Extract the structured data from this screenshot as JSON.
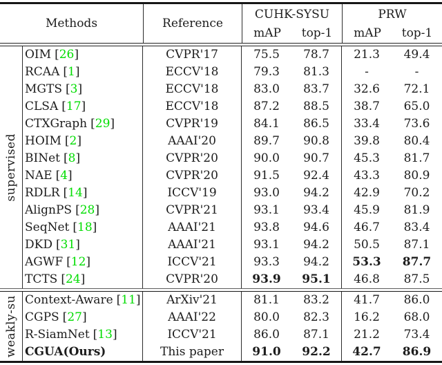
{
  "colors": {
    "citation_green": "#00dd00",
    "text": "#1c1c1c",
    "rule": "#161616"
  },
  "table": {
    "lb": "[",
    "rb": "]",
    "header": {
      "methods": "Methods",
      "reference": "Reference",
      "cuhk": "CUHK-SYSU",
      "prw": "PRW",
      "map": "mAP",
      "top1": "top-1"
    },
    "groups": [
      {
        "label": "supervised",
        "rows": [
          {
            "method": "OIM",
            "cite": "26",
            "ref": "CVPR'17",
            "c_map": "75.5",
            "c_top": "78.7",
            "p_map": "21.3",
            "p_top": "49.4"
          },
          {
            "method": "RCAA",
            "cite": "1",
            "ref": "ECCV'18",
            "c_map": "79.3",
            "c_top": "81.3",
            "p_map": "-",
            "p_top": "-"
          },
          {
            "method": "MGTS",
            "cite": "3",
            "ref": "ECCV'18",
            "c_map": "83.0",
            "c_top": "83.7",
            "p_map": "32.6",
            "p_top": "72.1"
          },
          {
            "method": "CLSA",
            "cite": "17",
            "ref": "ECCV'18",
            "c_map": "87.2",
            "c_top": "88.5",
            "p_map": "38.7",
            "p_top": "65.0"
          },
          {
            "method": "CTXGraph",
            "cite": "29",
            "ref": "CVPR'19",
            "c_map": "84.1",
            "c_top": "86.5",
            "p_map": "33.4",
            "p_top": "73.6"
          },
          {
            "method": "HOIM",
            "cite": "2",
            "ref": "AAAI'20",
            "c_map": "89.7",
            "c_top": "90.8",
            "p_map": "39.8",
            "p_top": "80.4"
          },
          {
            "method": "BINet",
            "cite": "8",
            "ref": "CVPR'20",
            "c_map": "90.0",
            "c_top": "90.7",
            "p_map": "45.3",
            "p_top": "81.7"
          },
          {
            "method": "NAE",
            "cite": "4",
            "ref": "CVPR'20",
            "c_map": "91.5",
            "c_top": "92.4",
            "p_map": "43.3",
            "p_top": "80.9"
          },
          {
            "method": "RDLR",
            "cite": "14",
            "ref": "ICCV'19",
            "c_map": "93.0",
            "c_top": "94.2",
            "p_map": "42.9",
            "p_top": "70.2"
          },
          {
            "method": "AlignPS",
            "cite": "28",
            "ref": "CVPR'21",
            "c_map": "93.1",
            "c_top": "93.4",
            "p_map": "45.9",
            "p_top": "81.9"
          },
          {
            "method": "SeqNet",
            "cite": "18",
            "ref": "AAAI'21",
            "c_map": "93.8",
            "c_top": "94.6",
            "p_map": "46.7",
            "p_top": "83.4"
          },
          {
            "method": "DKD",
            "cite": "31",
            "ref": "AAAI'21",
            "c_map": "93.1",
            "c_top": "94.2",
            "p_map": "50.5",
            "p_top": "87.1"
          },
          {
            "method": "AGWF",
            "cite": "12",
            "ref": "ICCV'21",
            "c_map": "93.3",
            "c_top": "94.2",
            "p_map": "53.3",
            "p_top": "87.7"
          },
          {
            "method": "TCTS",
            "cite": "24",
            "ref": "CVPR'20",
            "c_map": "93.9",
            "c_top": "95.1",
            "p_map": "46.8",
            "p_top": "87.5"
          }
        ]
      },
      {
        "label": "weakly-su",
        "rows": [
          {
            "method": "Context-Aware",
            "cite": "11",
            "ref": "ArXiv'21",
            "c_map": "81.1",
            "c_top": "83.2",
            "p_map": "41.7",
            "p_top": "86.0"
          },
          {
            "method": "CGPS",
            "cite": "27",
            "ref": "AAAI'22",
            "c_map": "80.0",
            "c_top": "82.3",
            "p_map": "16.2",
            "p_top": "68.0"
          },
          {
            "method": "R-SiamNet",
            "cite": "13",
            "ref": "ICCV'21",
            "c_map": "86.0",
            "c_top": "87.1",
            "p_map": "21.2",
            "p_top": "73.4"
          },
          {
            "method": "CGUA(Ours)",
            "cite": "",
            "ref": "This paper",
            "c_map": "91.0",
            "c_top": "92.2",
            "p_map": "42.7",
            "p_top": "86.9"
          }
        ]
      }
    ]
  }
}
